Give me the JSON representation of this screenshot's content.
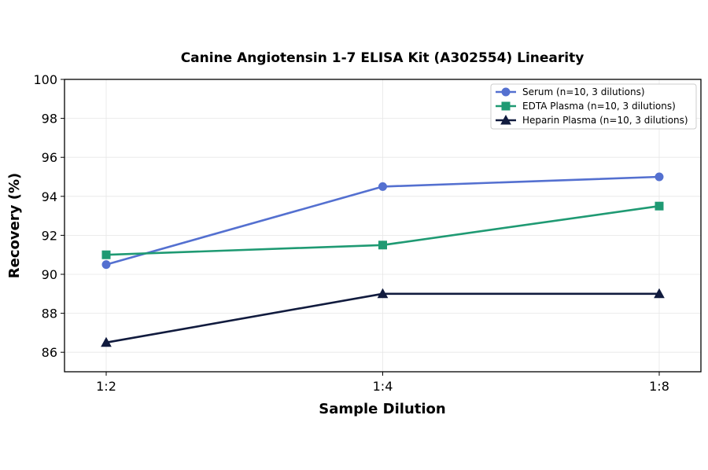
{
  "chart_data": {
    "type": "line",
    "title": "Canine Angiotensin 1-7 ELISA Kit (A302554) Linearity",
    "xlabel": "Sample Dilution",
    "ylabel": "Recovery (%)",
    "categories": [
      "1:2",
      "1:4",
      "1:8"
    ],
    "ylim": [
      85,
      100
    ],
    "yticks": [
      86,
      88,
      90,
      92,
      94,
      96,
      98,
      100
    ],
    "grid": true,
    "legend_position": "top-right",
    "series": [
      {
        "name": "Serum (n=10, 3 dilutions)",
        "values": [
          90.5,
          94.5,
          95.0
        ],
        "color": "#5470D0",
        "marker": "circle"
      },
      {
        "name": "EDTA Plasma (n=10, 3 dilutions)",
        "values": [
          91.0,
          91.5,
          93.5
        ],
        "color": "#1F9A73",
        "marker": "square"
      },
      {
        "name": "Heparin Plasma (n=10, 3 dilutions)",
        "values": [
          86.5,
          89.0,
          89.0
        ],
        "color": "#111B3E",
        "marker": "triangle"
      }
    ]
  }
}
